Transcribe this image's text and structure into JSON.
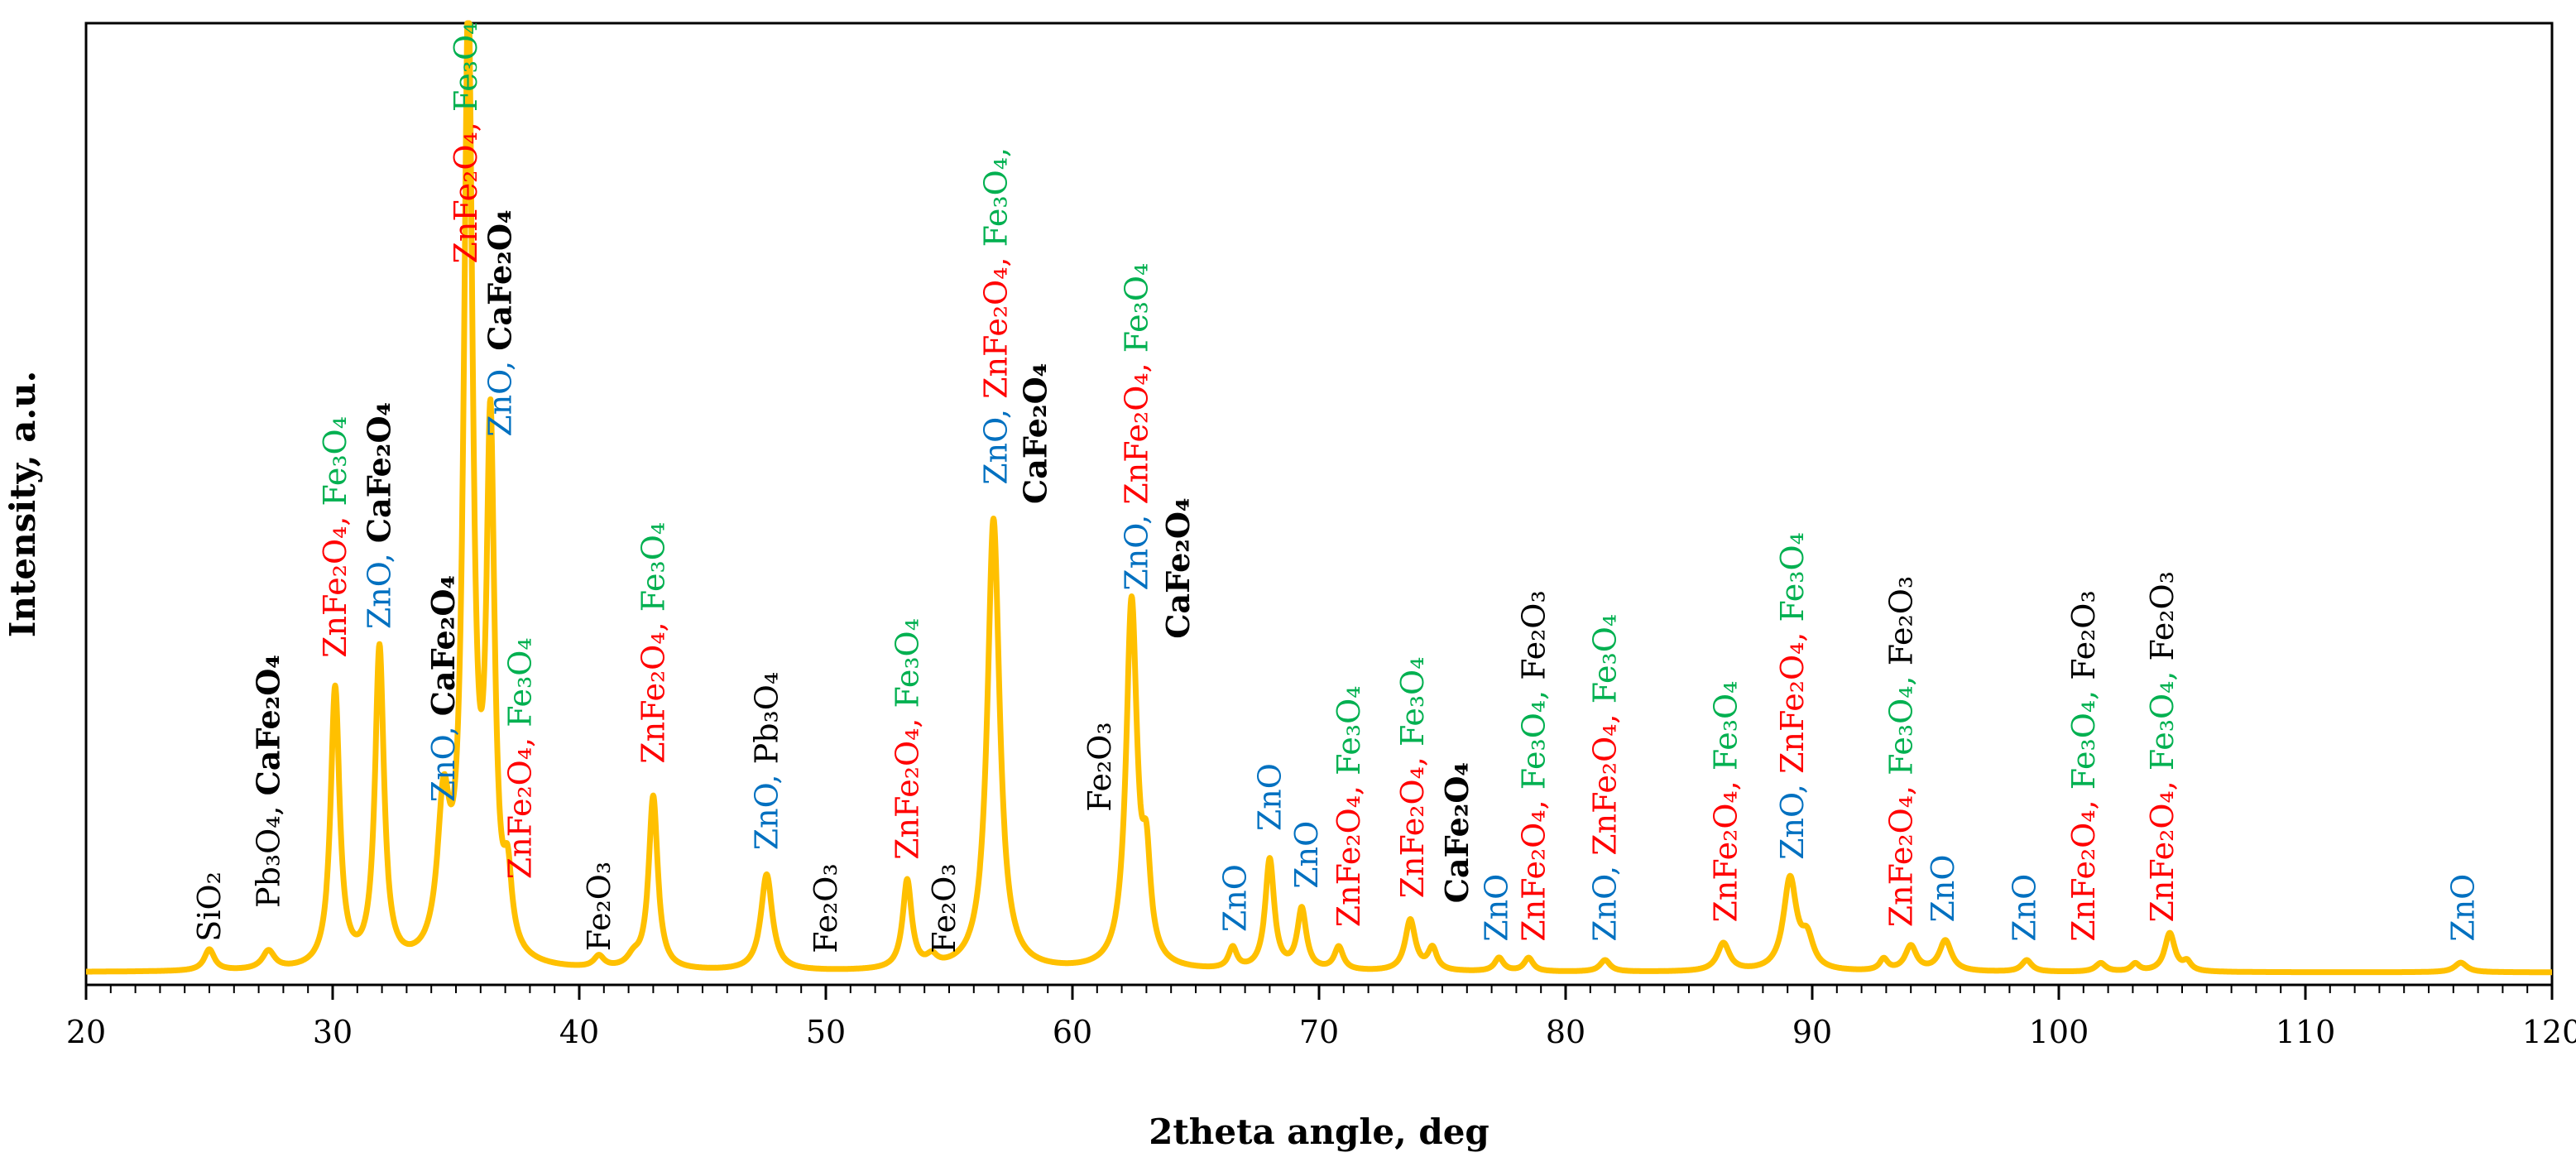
{
  "chart_data": {
    "type": "line",
    "xlabel": "2theta angle, deg",
    "ylabel": "Intensity, a.u.",
    "xlim": [
      20,
      120
    ],
    "ylim": [
      0,
      100
    ],
    "x_ticks": [
      20,
      30,
      40,
      50,
      60,
      70,
      80,
      90,
      100,
      110,
      120
    ],
    "line_color": "#FFC000",
    "colors": {
      "ZnO": "#0070C0",
      "ZnFe2O4": "#FF0000",
      "Fe3O4": "#00B050",
      "other": "#000000"
    },
    "baseline": 1.3,
    "peaks": [
      {
        "x": 25.0,
        "h": 2.2,
        "w": 0.25
      },
      {
        "x": 27.4,
        "h": 1.9,
        "w": 0.3
      },
      {
        "x": 30.1,
        "h": 29,
        "w": 0.22
      },
      {
        "x": 31.9,
        "h": 33,
        "w": 0.22
      },
      {
        "x": 34.5,
        "h": 15,
        "w": 0.3
      },
      {
        "x": 35.5,
        "h": 98,
        "w": 0.22
      },
      {
        "x": 36.4,
        "h": 53,
        "w": 0.2
      },
      {
        "x": 37.1,
        "h": 7,
        "w": 0.2
      },
      {
        "x": 40.8,
        "h": 1.2,
        "w": 0.25
      },
      {
        "x": 42.2,
        "h": 1.0,
        "w": 0.3
      },
      {
        "x": 43.0,
        "h": 18,
        "w": 0.22
      },
      {
        "x": 47.6,
        "h": 10,
        "w": 0.28
      },
      {
        "x": 53.3,
        "h": 9.2,
        "w": 0.22
      },
      {
        "x": 54.3,
        "h": 1.0,
        "w": 0.25
      },
      {
        "x": 56.8,
        "h": 47,
        "w": 0.3
      },
      {
        "x": 62.4,
        "h": 38,
        "w": 0.27
      },
      {
        "x": 63.0,
        "h": 9,
        "w": 0.2
      },
      {
        "x": 66.5,
        "h": 2.2,
        "w": 0.2
      },
      {
        "x": 68.0,
        "h": 11.5,
        "w": 0.22
      },
      {
        "x": 69.3,
        "h": 6.3,
        "w": 0.22
      },
      {
        "x": 70.8,
        "h": 2.4,
        "w": 0.22
      },
      {
        "x": 73.7,
        "h": 5.3,
        "w": 0.25
      },
      {
        "x": 74.6,
        "h": 2.3,
        "w": 0.22
      },
      {
        "x": 77.3,
        "h": 1.4,
        "w": 0.22
      },
      {
        "x": 78.5,
        "h": 1.4,
        "w": 0.22
      },
      {
        "x": 81.6,
        "h": 1.2,
        "w": 0.25
      },
      {
        "x": 86.4,
        "h": 2.9,
        "w": 0.3
      },
      {
        "x": 89.1,
        "h": 9.5,
        "w": 0.32
      },
      {
        "x": 89.8,
        "h": 3.0,
        "w": 0.3
      },
      {
        "x": 92.9,
        "h": 1.2,
        "w": 0.2
      },
      {
        "x": 94.0,
        "h": 2.6,
        "w": 0.28
      },
      {
        "x": 95.4,
        "h": 3.2,
        "w": 0.3
      },
      {
        "x": 98.7,
        "h": 1.2,
        "w": 0.25
      },
      {
        "x": 101.7,
        "h": 0.9,
        "w": 0.25
      },
      {
        "x": 103.1,
        "h": 0.8,
        "w": 0.2
      },
      {
        "x": 104.5,
        "h": 4.0,
        "w": 0.25
      },
      {
        "x": 105.2,
        "h": 0.9,
        "w": 0.2
      },
      {
        "x": 116.3,
        "h": 1.0,
        "w": 0.3
      }
    ],
    "annotations": [
      {
        "x": 25.0,
        "y": 4.5,
        "parts": [
          [
            "SiO₂",
            "other",
            0
          ]
        ]
      },
      {
        "x": 27.4,
        "y": 8,
        "parts": [
          [
            "Pb₃O₄, ",
            "other",
            0
          ],
          [
            "CaFe₂O₄",
            "other",
            1
          ]
        ]
      },
      {
        "x": 30.1,
        "y": 34,
        "parts": [
          [
            "ZnFe₂O₄, ",
            "ZnFe2O4",
            0
          ],
          [
            "Fe₃O₄",
            "Fe3O4",
            0
          ]
        ]
      },
      {
        "x": 31.9,
        "y": 37,
        "parts": [
          [
            "ZnO, ",
            "ZnO",
            0
          ],
          [
            "CaFe₂O₄",
            "other",
            1
          ]
        ]
      },
      {
        "x": 34.5,
        "y": 19,
        "parts": [
          [
            "ZnO, ",
            "ZnO",
            0
          ],
          [
            "CaFe₂O₄",
            "other",
            1
          ]
        ]
      },
      {
        "x": 35.4,
        "y": 75,
        "parts": [
          [
            "ZnFe₂O₄, ",
            "ZnFe2O4",
            0
          ],
          [
            "Fe₃O₄",
            "Fe3O4",
            0
          ]
        ]
      },
      {
        "x": 36.8,
        "y": 57,
        "parts": [
          [
            "ZnO, ",
            "ZnO",
            0
          ],
          [
            "CaFe₂O₄",
            "other",
            1
          ]
        ]
      },
      {
        "x": 37.6,
        "y": 11,
        "parts": [
          [
            "ZnFe₂O₄, ",
            "ZnFe2O4",
            0
          ],
          [
            "Fe₃O₄",
            "Fe3O4",
            0
          ]
        ]
      },
      {
        "x": 40.8,
        "y": 3.5,
        "parts": [
          [
            "Fe₂O₃",
            "other",
            0
          ]
        ]
      },
      {
        "x": 43.0,
        "y": 23,
        "parts": [
          [
            "ZnFe₂O₄, ",
            "ZnFe2O4",
            0
          ],
          [
            "Fe₃O₄",
            "Fe3O4",
            0
          ]
        ]
      },
      {
        "x": 47.6,
        "y": 14,
        "parts": [
          [
            "ZnO, ",
            "ZnO",
            0
          ],
          [
            "Pb₃O₄",
            "other",
            0
          ]
        ]
      },
      {
        "x": 50.0,
        "y": 3.3,
        "parts": [
          [
            "Fe₂O₃",
            "other",
            0
          ]
        ]
      },
      {
        "x": 53.3,
        "y": 13,
        "parts": [
          [
            "ZnFe₂O₄, ",
            "ZnFe2O4",
            0
          ],
          [
            "Fe₃O₄",
            "Fe3O4",
            0
          ]
        ]
      },
      {
        "x": 54.8,
        "y": 3.3,
        "parts": [
          [
            "Fe₂O₃",
            "other",
            0
          ]
        ]
      },
      {
        "x": 56.9,
        "y": 52,
        "parts": [
          [
            "ZnO, ",
            "ZnO",
            0
          ],
          [
            "ZnFe₂O₄, ",
            "ZnFe2O4",
            0
          ],
          [
            "Fe₃O₄,",
            "Fe3O4",
            0
          ]
        ]
      },
      {
        "x": 58.5,
        "y": 50,
        "parts": [
          [
            "CaFe₂O₄",
            "other",
            1
          ]
        ]
      },
      {
        "x": 61.1,
        "y": 18,
        "parts": [
          [
            "Fe₂O₃",
            "other",
            0
          ]
        ]
      },
      {
        "x": 62.6,
        "y": 41,
        "parts": [
          [
            "ZnO, ",
            "ZnO",
            0
          ],
          [
            "ZnFe₂O₄, ",
            "ZnFe2O4",
            0
          ],
          [
            "Fe₃O₄",
            "Fe3O4",
            0
          ]
        ]
      },
      {
        "x": 64.3,
        "y": 36,
        "parts": [
          [
            "CaFe₂O₄",
            "other",
            1
          ]
        ]
      },
      {
        "x": 66.6,
        "y": 5.5,
        "parts": [
          [
            "ZnO",
            "ZnO",
            0
          ]
        ]
      },
      {
        "x": 68.0,
        "y": 16,
        "parts": [
          [
            "ZnO",
            "ZnO",
            0
          ]
        ]
      },
      {
        "x": 69.5,
        "y": 10,
        "parts": [
          [
            "ZnO",
            "ZnO",
            0
          ]
        ]
      },
      {
        "x": 71.2,
        "y": 6,
        "parts": [
          [
            "ZnFe₂O₄, ",
            "ZnFe2O4",
            0
          ],
          [
            "Fe₃O₄",
            "Fe3O4",
            0
          ]
        ]
      },
      {
        "x": 73.8,
        "y": 9,
        "parts": [
          [
            "ZnFe₂O₄, ",
            "ZnFe2O4",
            0
          ],
          [
            "Fe₃O₄",
            "Fe3O4",
            0
          ]
        ]
      },
      {
        "x": 75.6,
        "y": 8.5,
        "parts": [
          [
            "CaFe₂O₄",
            "other",
            1
          ]
        ]
      },
      {
        "x": 77.2,
        "y": 4.5,
        "parts": [
          [
            "ZnO",
            "ZnO",
            0
          ]
        ]
      },
      {
        "x": 78.7,
        "y": 4.5,
        "parts": [
          [
            "ZnFe₂O₄, ",
            "ZnFe2O4",
            0
          ],
          [
            "Fe₃O₄, ",
            "Fe3O4",
            0
          ],
          [
            "Fe₂O₃",
            "other",
            0
          ]
        ]
      },
      {
        "x": 81.6,
        "y": 4.5,
        "parts": [
          [
            "ZnO, ",
            "ZnO",
            0
          ],
          [
            "ZnFe₂O₄, ",
            "ZnFe2O4",
            0
          ],
          [
            "Fe₃O₄",
            "Fe3O4",
            0
          ]
        ]
      },
      {
        "x": 86.5,
        "y": 6.5,
        "parts": [
          [
            "ZnFe₂O₄, ",
            "ZnFe2O4",
            0
          ],
          [
            "Fe₃O₄",
            "Fe3O4",
            0
          ]
        ]
      },
      {
        "x": 89.2,
        "y": 13,
        "parts": [
          [
            "ZnO, ",
            "ZnO",
            0
          ],
          [
            "ZnFe₂O₄, ",
            "ZnFe2O4",
            0
          ],
          [
            "Fe₃O₄",
            "Fe3O4",
            0
          ]
        ]
      },
      {
        "x": 93.6,
        "y": 6,
        "parts": [
          [
            "ZnFe₂O₄, ",
            "ZnFe2O4",
            0
          ],
          [
            "Fe₃O₄, ",
            "Fe3O4",
            0
          ],
          [
            "Fe₂O₃",
            "other",
            0
          ]
        ]
      },
      {
        "x": 95.3,
        "y": 6.5,
        "parts": [
          [
            "ZnO",
            "ZnO",
            0
          ]
        ]
      },
      {
        "x": 98.6,
        "y": 4.5,
        "parts": [
          [
            "ZnO",
            "ZnO",
            0
          ]
        ]
      },
      {
        "x": 101.0,
        "y": 4.5,
        "parts": [
          [
            "ZnFe₂O₄, ",
            "ZnFe2O4",
            0
          ],
          [
            "Fe₃O₄, ",
            "Fe3O4",
            0
          ],
          [
            "Fe₂O₃",
            "other",
            0
          ]
        ]
      },
      {
        "x": 104.2,
        "y": 6.5,
        "parts": [
          [
            "ZnFe₂O₄, ",
            "ZnFe2O4",
            0
          ],
          [
            "Fe₃O₄, ",
            "Fe3O4",
            0
          ],
          [
            "Fe₂O₃",
            "other",
            0
          ]
        ]
      },
      {
        "x": 116.4,
        "y": 4.5,
        "parts": [
          [
            "ZnO",
            "ZnO",
            0
          ]
        ]
      }
    ]
  }
}
